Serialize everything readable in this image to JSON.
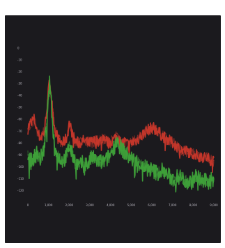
{
  "chart_data": {
    "type": "line",
    "title": "",
    "xlabel": "",
    "ylabel": "",
    "x_ticks": [
      "0",
      "1,000",
      "2,000",
      "3,000",
      "4,000",
      "5,000",
      "6,000",
      "7,000",
      "8,000",
      "9,000"
    ],
    "y_ticks": [
      "0",
      "-10",
      "-20",
      "-30",
      "-40",
      "-50",
      "-60",
      "-70",
      "-80",
      "-90",
      "-100",
      "-110",
      "-120"
    ],
    "xlim": [
      0,
      9000
    ],
    "ylim": [
      -125,
      0
    ],
    "grid": false,
    "legend": "none",
    "series": [
      {
        "color": "#c8372b",
        "x": [
          0,
          150,
          300,
          450,
          600,
          800,
          900,
          1000,
          1060,
          1150,
          1300,
          1500,
          1700,
          1900,
          2000,
          2150,
          2300,
          2500,
          2700,
          2900,
          3100,
          3300,
          3500,
          3700,
          3900,
          4100,
          4300,
          4500,
          4700,
          4900,
          5100,
          5300,
          5500,
          5700,
          5900,
          6100,
          6300,
          6500,
          6700,
          6900,
          7100,
          7300,
          7500,
          7700,
          7900,
          8100,
          8300,
          8500,
          8700,
          9000
        ],
        "y": [
          -68,
          -62,
          -60,
          -70,
          -76,
          -70,
          -55,
          -35,
          -27,
          -44,
          -68,
          -78,
          -80,
          -75,
          -63,
          -72,
          -79,
          -80,
          -78,
          -80,
          -79,
          -78,
          -78,
          -76,
          -80,
          -78,
          -74,
          -80,
          -79,
          -82,
          -79,
          -77,
          -74,
          -70,
          -68,
          -67,
          -70,
          -74,
          -76,
          -79,
          -81,
          -84,
          -86,
          -87,
          -88,
          -90,
          -91,
          -92,
          -93,
          -95
        ]
      },
      {
        "color": "#3fa33a",
        "x": [
          0,
          150,
          300,
          450,
          600,
          800,
          900,
          1000,
          1060,
          1150,
          1300,
          1500,
          1700,
          1900,
          2000,
          2150,
          2300,
          2500,
          2700,
          2900,
          3100,
          3300,
          3500,
          3700,
          3900,
          4100,
          4300,
          4500,
          4700,
          4900,
          5100,
          5300,
          5500,
          5700,
          5900,
          6100,
          6300,
          6500,
          6700,
          6900,
          7100,
          7300,
          7500,
          7700,
          7900,
          8100,
          8300,
          8500,
          8700,
          9000
        ],
        "y": [
          -90,
          -96,
          -92,
          -88,
          -94,
          -84,
          -64,
          -42,
          -28,
          -50,
          -86,
          -92,
          -95,
          -90,
          -82,
          -90,
          -95,
          -100,
          -96,
          -98,
          -92,
          -95,
          -96,
          -96,
          -92,
          -86,
          -78,
          -84,
          -88,
          -92,
          -94,
          -96,
          -99,
          -100,
          -102,
          -104,
          -105,
          -103,
          -106,
          -109,
          -111,
          -108,
          -110,
          -112,
          -113,
          -108,
          -110,
          -113,
          -111,
          -112
        ]
      }
    ]
  }
}
